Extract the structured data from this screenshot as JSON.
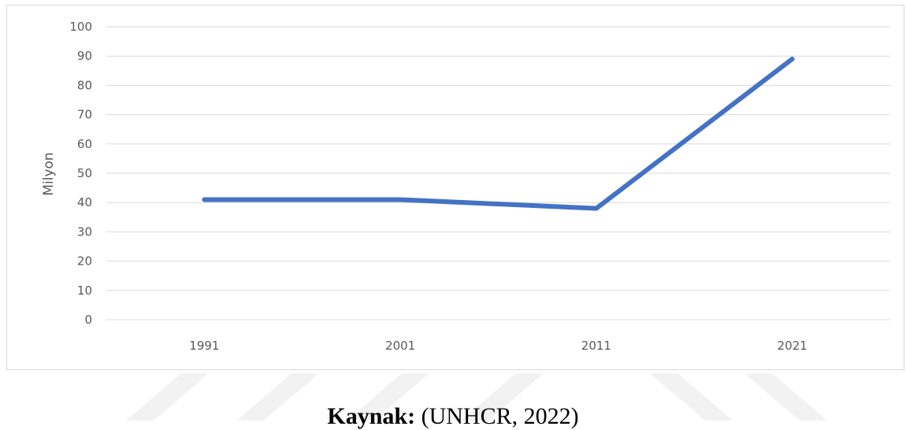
{
  "chart_data": {
    "type": "line",
    "categories": [
      "1991",
      "2001",
      "2011",
      "2021"
    ],
    "series": [
      {
        "values": [
          41,
          41,
          38,
          89
        ]
      }
    ],
    "ylabel": "Milyon",
    "xlabel": "",
    "ylim": [
      0,
      100
    ],
    "yticks": [
      "0",
      "10",
      "20",
      "30",
      "40",
      "50",
      "60",
      "70",
      "80",
      "90",
      "100"
    ],
    "grid": true,
    "line_color": "#4472c4"
  },
  "caption": {
    "label": "Kaynak:",
    "text": " (UNHCR, 2022)"
  }
}
